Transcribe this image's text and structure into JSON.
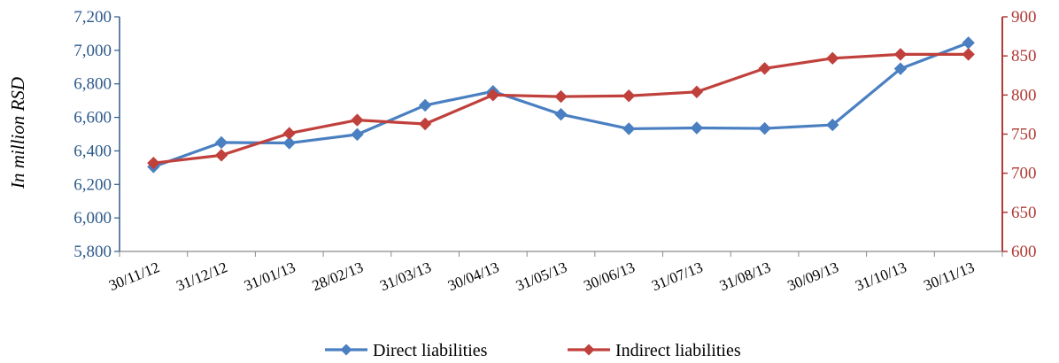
{
  "chart_data": {
    "type": "line",
    "ylabel": "In million RSD",
    "x": [
      "30/11/12",
      "31/12/12",
      "31/01/13",
      "28/02/13",
      "31/03/13",
      "30/04/13",
      "31/05/13",
      "30/06/13",
      "31/07/13",
      "31/08/13",
      "30/09/13",
      "31/10/13",
      "30/11/13"
    ],
    "y_left": {
      "min": 5800,
      "max": 7200,
      "step": 200,
      "ticks": [
        "5,800",
        "6,000",
        "6,200",
        "6,400",
        "6,600",
        "6,800",
        "7,000",
        "7,200"
      ],
      "color": "#2d5a8c"
    },
    "y_right": {
      "min": 600,
      "max": 900,
      "step": 50,
      "ticks": [
        "600",
        "650",
        "700",
        "750",
        "800",
        "850",
        "900"
      ],
      "color": "#b03a36"
    },
    "series": [
      {
        "name": "Direct liabilities",
        "axis": "left",
        "color": "#4a7fc1",
        "values": [
          6305,
          6450,
          6447,
          6498,
          6672,
          6755,
          6618,
          6532,
          6537,
          6534,
          6555,
          6890,
          7045
        ]
      },
      {
        "name": "Indirect liabilities",
        "axis": "right",
        "color": "#c0403c",
        "values": [
          713,
          723,
          751,
          768,
          763,
          800,
          798,
          799,
          804,
          834,
          847,
          852,
          852
        ]
      }
    ],
    "legend": "bottom",
    "grid": false
  }
}
